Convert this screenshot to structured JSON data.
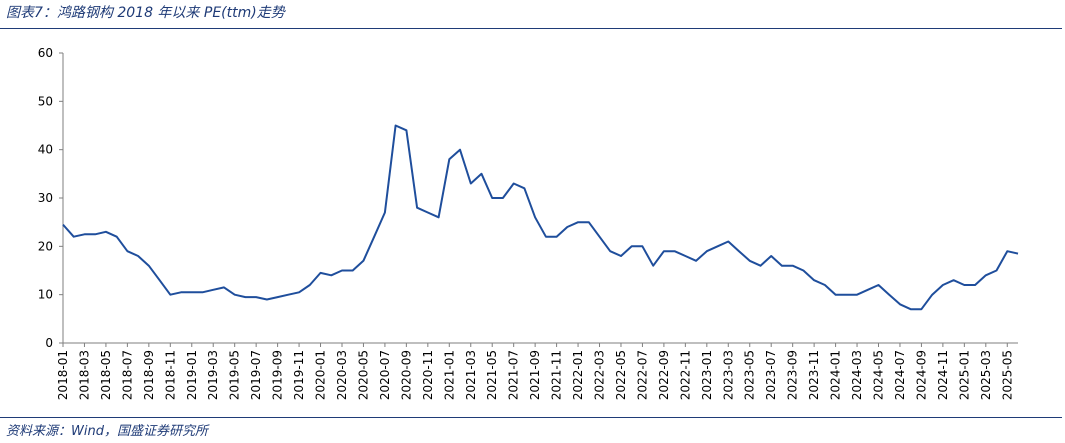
{
  "figure": {
    "title": "图表7：鸿路钢构 2018 年以来 PE(ttm)走势",
    "source": "资料来源：Wind，国盛证券研究所"
  },
  "colors": {
    "line": "#1f4e9c",
    "rule": "#1f3b77",
    "axis": "#7f7f7f"
  },
  "chart_data": {
    "type": "line",
    "title": "",
    "xlabel": "",
    "ylabel": "",
    "ylim": [
      0,
      60
    ],
    "yticks": [
      0,
      10,
      20,
      30,
      40,
      50,
      60
    ],
    "xlim": [
      "2018-01",
      "2025-06"
    ],
    "xticks": [
      "2018-01",
      "2018-03",
      "2018-05",
      "2018-07",
      "2018-09",
      "2018-11",
      "2019-01",
      "2019-03",
      "2019-05",
      "2019-07",
      "2019-09",
      "2019-11",
      "2020-01",
      "2020-03",
      "2020-05",
      "2020-07",
      "2020-09",
      "2020-11",
      "2021-01",
      "2021-03",
      "2021-05",
      "2021-07",
      "2021-09",
      "2021-11",
      "2022-01",
      "2022-03",
      "2022-05",
      "2022-07",
      "2022-09",
      "2022-11",
      "2023-01",
      "2023-03",
      "2023-05",
      "2023-07",
      "2023-09",
      "2023-11",
      "2024-01",
      "2024-03",
      "2024-05",
      "2024-07",
      "2024-09",
      "2024-11",
      "2025-01",
      "2025-03",
      "2025-05"
    ],
    "grid": false,
    "legend": "none",
    "series": [
      {
        "x": [
          "2018-01",
          "2018-02",
          "2018-03",
          "2018-04",
          "2018-05",
          "2018-06",
          "2018-07",
          "2018-08",
          "2018-09",
          "2018-10",
          "2018-11",
          "2018-12",
          "2019-01",
          "2019-02",
          "2019-03",
          "2019-04",
          "2019-05",
          "2019-06",
          "2019-07",
          "2019-08",
          "2019-09",
          "2019-10",
          "2019-11",
          "2019-12",
          "2020-01",
          "2020-02",
          "2020-03",
          "2020-04",
          "2020-05",
          "2020-06",
          "2020-07",
          "2020-08",
          "2020-09",
          "2020-10",
          "2020-11",
          "2020-12",
          "2021-01",
          "2021-02",
          "2021-03",
          "2021-04",
          "2021-05",
          "2021-06",
          "2021-07",
          "2021-08",
          "2021-09",
          "2021-10",
          "2021-11",
          "2021-12",
          "2022-01",
          "2022-02",
          "2022-03",
          "2022-04",
          "2022-05",
          "2022-06",
          "2022-07",
          "2022-08",
          "2022-09",
          "2022-10",
          "2022-11",
          "2022-12",
          "2023-01",
          "2023-02",
          "2023-03",
          "2023-04",
          "2023-05",
          "2023-06",
          "2023-07",
          "2023-08",
          "2023-09",
          "2023-10",
          "2023-11",
          "2023-12",
          "2024-01",
          "2024-02",
          "2024-03",
          "2024-04",
          "2024-05",
          "2024-06",
          "2024-07",
          "2024-08",
          "2024-09",
          "2024-10",
          "2024-11",
          "2024-12",
          "2025-01",
          "2025-02",
          "2025-03",
          "2025-04",
          "2025-05",
          "2025-06"
        ],
        "values": [
          24.5,
          22,
          22.5,
          22.5,
          23,
          22,
          19,
          18,
          16,
          13,
          10,
          10.5,
          10.5,
          10.5,
          11,
          11.5,
          10,
          9.5,
          9.5,
          9,
          9.5,
          10,
          10.5,
          12,
          14.5,
          14,
          15,
          15,
          17,
          22,
          27,
          45,
          44,
          28,
          27,
          26,
          38,
          40,
          33,
          35,
          30,
          30,
          33,
          32,
          26,
          22,
          22,
          24,
          25,
          25,
          22,
          19,
          18,
          20,
          20,
          16,
          19,
          19,
          18,
          17,
          19,
          20,
          21,
          19,
          17,
          16,
          18,
          16,
          16,
          15,
          13,
          12,
          10,
          10,
          10,
          11,
          12,
          10,
          8,
          7,
          7,
          10,
          12,
          13,
          12,
          12,
          14,
          15,
          19,
          18.5
        ]
      }
    ]
  }
}
